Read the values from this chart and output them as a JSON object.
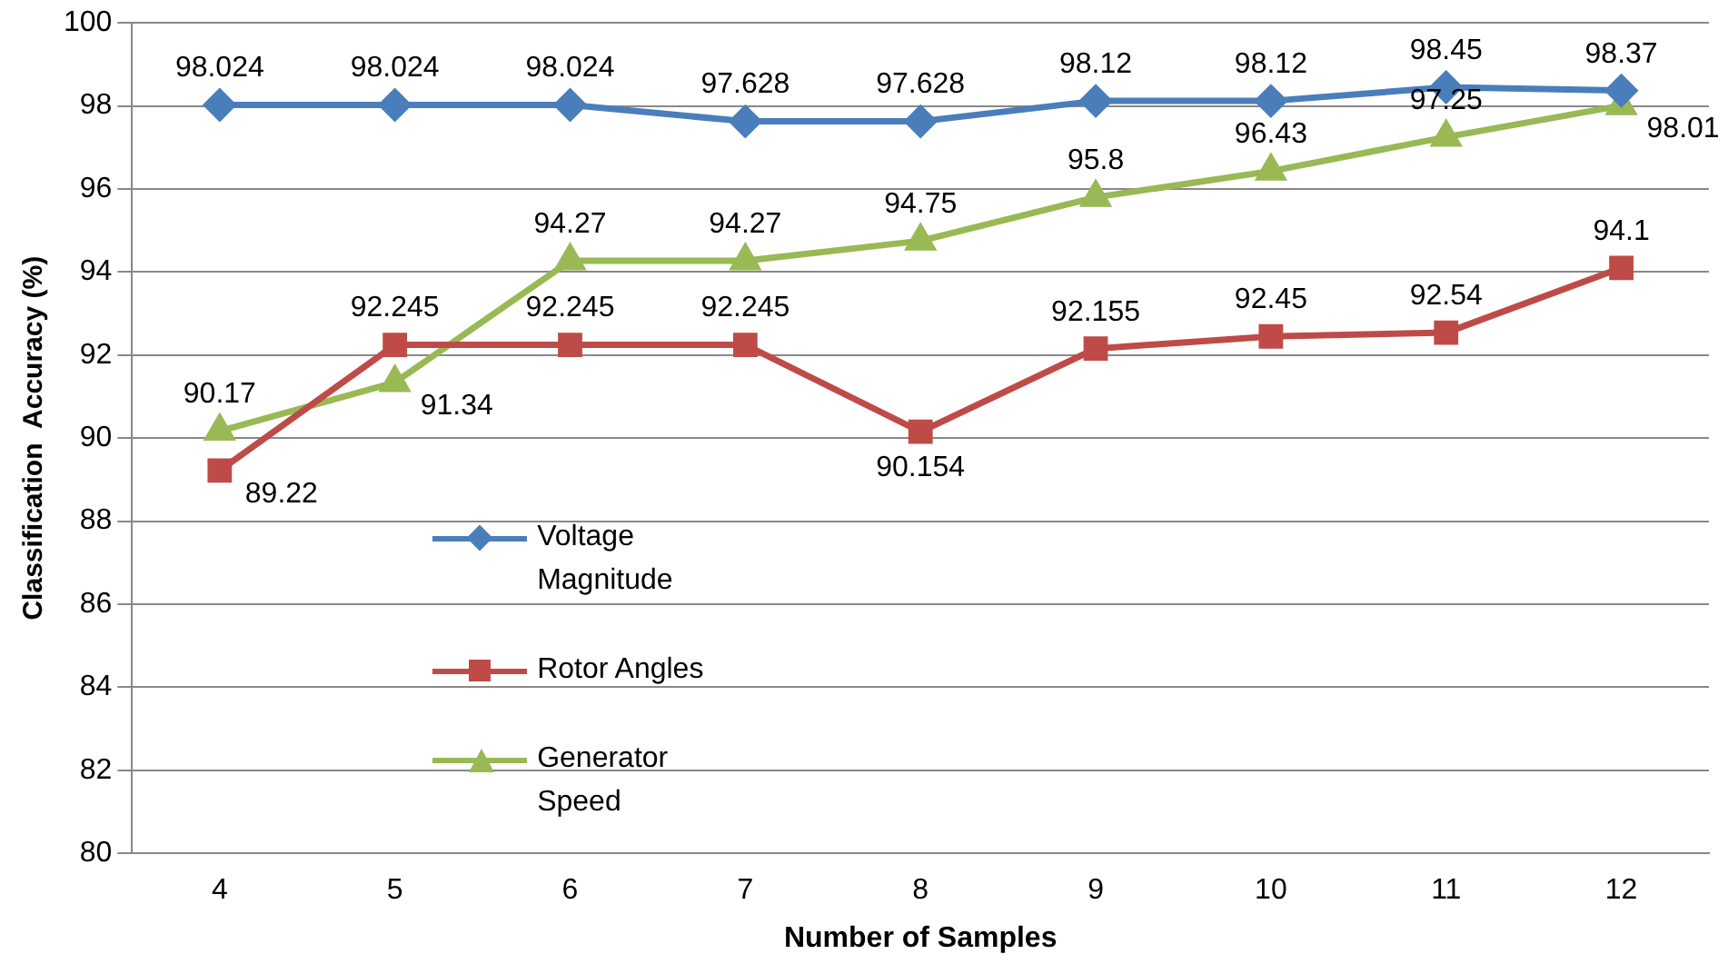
{
  "chart_data": {
    "type": "line",
    "xlabel": "Number of Samples",
    "ylabel": "Classification  Accuracy (%)",
    "categories": [
      "4",
      "5",
      "6",
      "7",
      "8",
      "9",
      "10",
      "11",
      "12"
    ],
    "series": [
      {
        "name": "Voltage Magnitude",
        "color": "#4a7ebb",
        "marker": "diamond",
        "values": [
          98.024,
          98.024,
          98.024,
          97.628,
          97.628,
          98.12,
          98.12,
          98.45,
          98.37
        ]
      },
      {
        "name": "Rotor Angles",
        "color": "#be4b48",
        "marker": "square",
        "values": [
          89.22,
          92.245,
          92.245,
          92.245,
          90.154,
          92.155,
          92.45,
          92.54,
          94.1
        ]
      },
      {
        "name": "Generator Speed",
        "color": "#98b954",
        "marker": "triangle",
        "values": [
          90.17,
          91.34,
          94.27,
          94.27,
          94.75,
          95.8,
          96.43,
          97.25,
          98.01
        ]
      }
    ],
    "ylim": [
      80,
      100
    ],
    "yticks": [
      80,
      82,
      84,
      86,
      88,
      90,
      92,
      94,
      96,
      98,
      100
    ],
    "grid": "y",
    "legend": "left",
    "data_labels": true
  }
}
